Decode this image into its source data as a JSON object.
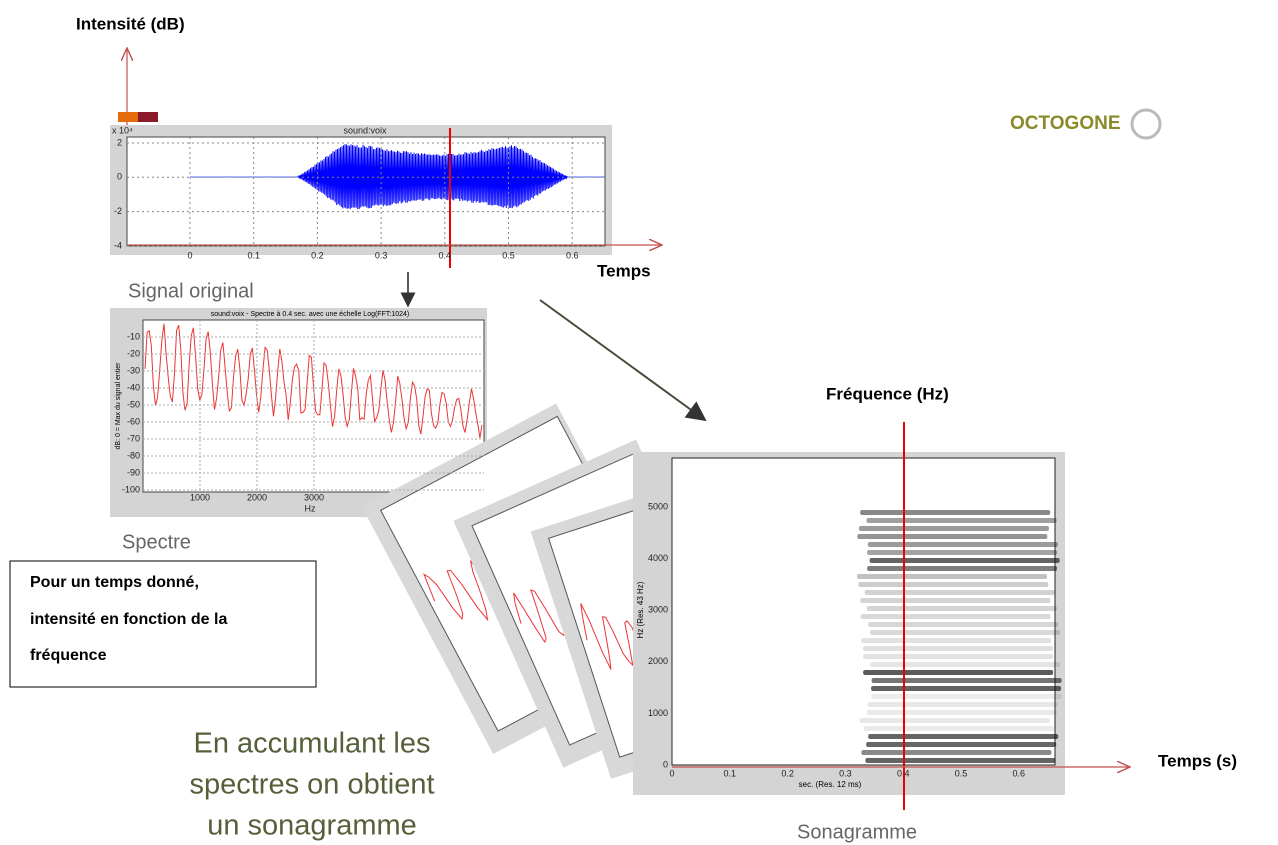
{
  "axis_labels": {
    "intensity": "Intensité (dB)",
    "time": "Temps",
    "frequency": "Fréquence (Hz)",
    "time_s": "Temps (s)"
  },
  "signal": {
    "caption": "Signal original",
    "title": "sound:voix",
    "scale": "x 10⁴",
    "yticks": [
      "2",
      "0",
      "-2",
      "-4"
    ],
    "xticks": [
      "0",
      "0.1",
      "0.2",
      "0.3",
      "0.4",
      "0.5",
      "0.6"
    ]
  },
  "spectrum": {
    "caption": "Spectre",
    "title": "sound:voix - Spectre à 0.4 sec. avec une échelle Log(FFT:1024)",
    "ylabel": "dB: 0 = Max du signal entier",
    "yticks": [
      "-10",
      "-20",
      "-30",
      "-40",
      "-50",
      "-60",
      "-70",
      "-80",
      "-90",
      "-100"
    ],
    "xticks": [
      "1000",
      "2000",
      "3000"
    ],
    "xlabel": "Hz"
  },
  "note": {
    "lines": [
      "Pour un temps donné,",
      "intensité en fonction de la",
      "fréquence"
    ]
  },
  "conclusion": {
    "lines": [
      "En accumulant les",
      "spectres on obtient",
      "un sonagramme"
    ]
  },
  "sonagram": {
    "caption": "Sonagramme",
    "ylabel": "Hz (Res. 43 Hz)",
    "xlabel": "sec. (Res. 12 ms)",
    "yticks": [
      "0",
      "1000",
      "2000",
      "3000",
      "4000",
      "5000"
    ],
    "xticks": [
      "0",
      "0.1",
      "0.2",
      "0.3",
      "0.4",
      "0.5",
      "0.6"
    ]
  },
  "logo": {
    "name": "OCTOGONE"
  }
}
